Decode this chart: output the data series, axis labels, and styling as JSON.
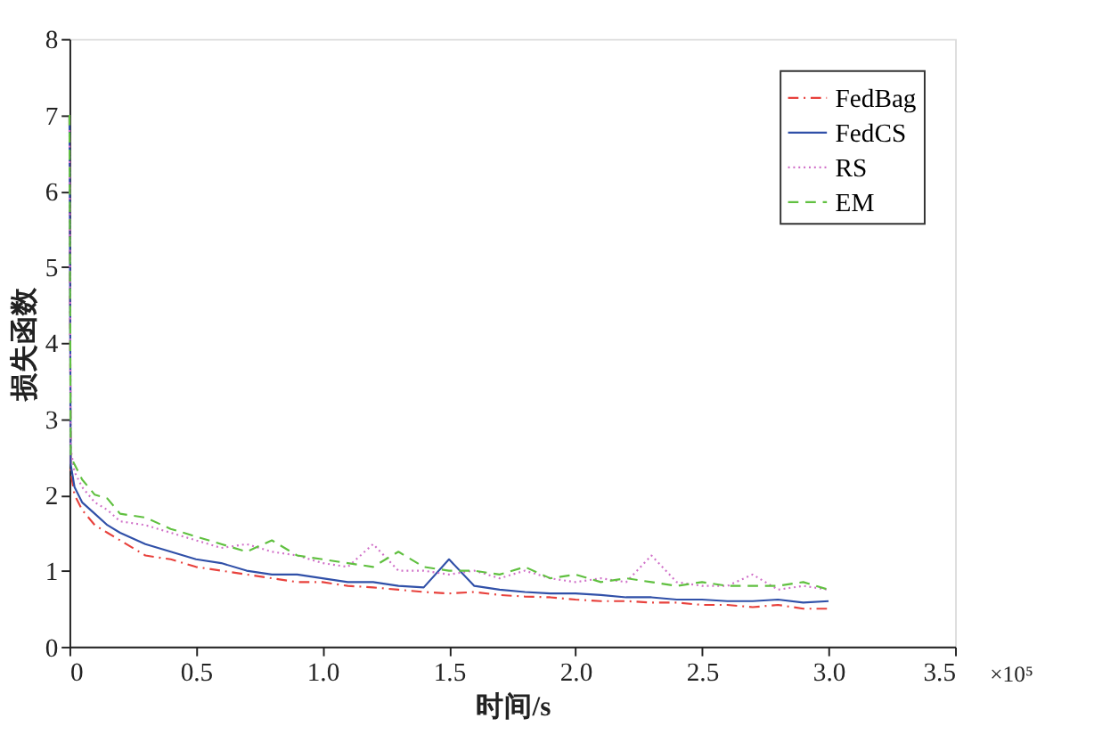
{
  "chart_data": {
    "type": "line",
    "xlabel": "时间/s",
    "ylabel": "损失函数",
    "annotations": [
      "×10⁵"
    ],
    "x": [
      0,
      0.005,
      0.02,
      0.05,
      0.1,
      0.15,
      0.2,
      0.3,
      0.4,
      0.5,
      0.6,
      0.7,
      0.8,
      0.9,
      1.0,
      1.1,
      1.2,
      1.3,
      1.4,
      1.5,
      1.6,
      1.7,
      1.8,
      1.9,
      2.0,
      2.1,
      2.2,
      2.3,
      2.4,
      2.5,
      2.6,
      2.7,
      2.8,
      2.9,
      3.0
    ],
    "xlim": [
      0,
      3.5
    ],
    "xticks": [
      0,
      0.5,
      {
        "value": 1,
        "label": "1.0"
      },
      1.5,
      {
        "value": 2,
        "label": "2.0"
      },
      2.5,
      {
        "value": 3,
        "label": "3.0"
      },
      3.5
    ],
    "ylim": [
      0,
      8
    ],
    "yticks": [
      0,
      1,
      2,
      3,
      4,
      5,
      6,
      7,
      8
    ],
    "grid": false,
    "legend": "top right",
    "series": [
      {
        "name": "FedBag",
        "color": "#e8413c",
        "line_style": "dashdot",
        "values": [
          7.0,
          2.3,
          2.0,
          1.8,
          1.6,
          1.5,
          1.4,
          1.2,
          1.15,
          1.05,
          1.0,
          0.95,
          0.9,
          0.85,
          0.85,
          0.8,
          0.78,
          0.75,
          0.72,
          0.7,
          0.72,
          0.68,
          0.66,
          0.65,
          0.62,
          0.6,
          0.6,
          0.58,
          0.58,
          0.55,
          0.55,
          0.52,
          0.55,
          0.5,
          0.5
        ]
      },
      {
        "name": "FedCS",
        "color": "#3050a8",
        "line_style": "solid",
        "values": [
          7.0,
          2.4,
          2.1,
          1.9,
          1.75,
          1.6,
          1.5,
          1.35,
          1.25,
          1.15,
          1.1,
          1.0,
          0.95,
          0.95,
          0.9,
          0.85,
          0.85,
          0.8,
          0.78,
          1.15,
          0.8,
          0.75,
          0.72,
          0.7,
          0.7,
          0.68,
          0.65,
          0.65,
          0.62,
          0.62,
          0.6,
          0.6,
          0.62,
          0.58,
          0.6
        ]
      },
      {
        "name": "RS",
        "color": "#d070c8",
        "line_style": "dotted",
        "values": [
          6.8,
          2.6,
          2.3,
          2.1,
          1.9,
          1.8,
          1.65,
          1.6,
          1.5,
          1.4,
          1.3,
          1.35,
          1.25,
          1.2,
          1.1,
          1.05,
          1.35,
          1.0,
          1.0,
          0.95,
          1.0,
          0.9,
          1.0,
          0.9,
          0.85,
          0.9,
          0.85,
          1.2,
          0.85,
          0.8,
          0.8,
          0.95,
          0.75,
          0.8,
          0.75
        ]
      },
      {
        "name": "EM",
        "color": "#60c040",
        "line_style": "dashed",
        "values": [
          7.0,
          2.5,
          2.4,
          2.2,
          2.0,
          1.95,
          1.75,
          1.7,
          1.55,
          1.45,
          1.35,
          1.25,
          1.4,
          1.2,
          1.15,
          1.1,
          1.05,
          1.25,
          1.05,
          1.0,
          1.0,
          0.95,
          1.05,
          0.9,
          0.95,
          0.85,
          0.9,
          0.85,
          0.8,
          0.85,
          0.8,
          0.8,
          0.8,
          0.85,
          0.75
        ]
      }
    ]
  }
}
